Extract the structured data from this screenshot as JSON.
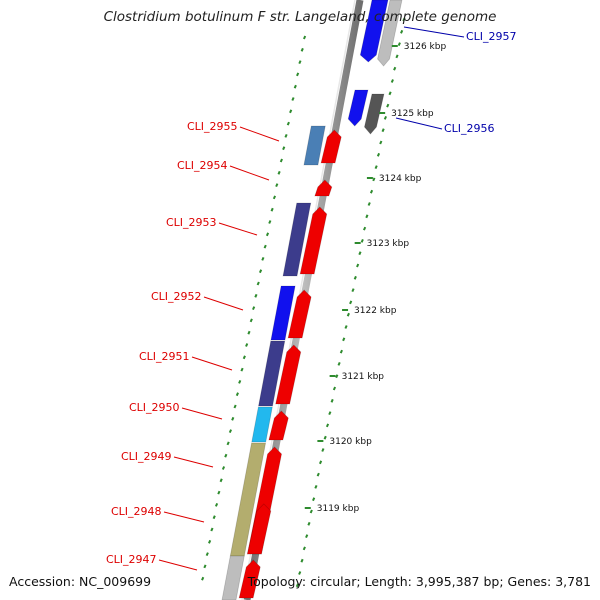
{
  "title": "Clostridium botulinum F str. Langeland, complete genome",
  "footer": {
    "accession": "Accession: NC_009699",
    "topology": "Topology: circular; Length: 3,995,387 bp; Genes: 3,781"
  },
  "colors": {
    "background": "#ffffff",
    "backbone": "#8a8a8a",
    "tick": "#2e8b2e",
    "forward_label": "#dd0000",
    "reverse_label": "#0000aa",
    "gene_red": "#ee0000",
    "gene_blue": "#1111ee",
    "gene_navy": "#3c3c8c",
    "gene_steel": "#4a7fb5",
    "gene_cyan": "#22b8ee",
    "gene_khaki": "#b3ad6e",
    "gene_grey": "#bdbdbd",
    "gene_darkgrey": "#555555"
  },
  "scale_labels": [
    "3126 kbp",
    "3125 kbp",
    "3124 kbp",
    "3123 kbp",
    "3122 kbp",
    "3121 kbp",
    "3120 kbp",
    "3119 kbp"
  ],
  "genes_reverse": [
    {
      "label": "CLI_2957",
      "color": "#1111ee"
    },
    {
      "label": "CLI_2956",
      "color": "#1111ee"
    }
  ],
  "genes_forward": [
    {
      "label": "CLI_2955",
      "color": "#4a7fb5"
    },
    {
      "label": "CLI_2954",
      "color": "#ee0000"
    },
    {
      "label": "CLI_2953",
      "color": "#3c3c8c"
    },
    {
      "label": "CLI_2952",
      "color": "#1111ee"
    },
    {
      "label": "CLI_2951",
      "color": "#3c3c8c"
    },
    {
      "label": "CLI_2950",
      "color": "#22b8ee"
    },
    {
      "label": "CLI_2949",
      "color": "#b3ad6e"
    },
    {
      "label": "CLI_2948",
      "color": "#b3ad6e"
    },
    {
      "label": "CLI_2947",
      "color": "#bdbdbd"
    }
  ]
}
